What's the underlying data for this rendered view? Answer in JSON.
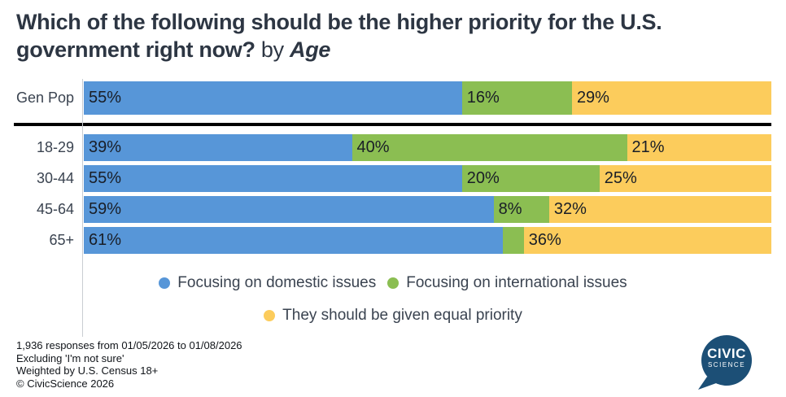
{
  "title": {
    "question": "Which of the following should be the higher priority for the U.S. government right now?",
    "by_connector": " by ",
    "dimension": "Age"
  },
  "chart_data": {
    "type": "bar",
    "stacked": true,
    "orientation": "horizontal",
    "unit": "%",
    "xlim": [
      0,
      100
    ],
    "categories": [
      "Gen Pop",
      "18-29",
      "30-44",
      "45-64",
      "65+"
    ],
    "series": [
      {
        "name": "Focusing on domestic issues",
        "color": "#5796D8",
        "values": [
          55,
          39,
          55,
          59,
          61
        ]
      },
      {
        "name": "Focusing on international issues",
        "color": "#8BBE52",
        "values": [
          16,
          40,
          20,
          8,
          3
        ]
      },
      {
        "name": "They should be given equal priority",
        "color": "#FCCC5C",
        "values": [
          29,
          21,
          25,
          32,
          36
        ]
      }
    ],
    "data_labels": [
      [
        "55%",
        "16%",
        "29%"
      ],
      [
        "39%",
        "40%",
        "21%"
      ],
      [
        "55%",
        "20%",
        "25%"
      ],
      [
        "59%",
        "8%",
        "32%"
      ],
      [
        "61%",
        "",
        "36%"
      ]
    ]
  },
  "legend": {
    "items": [
      {
        "label": "Focusing on domestic issues",
        "color": "#5796D8"
      },
      {
        "label": "Focusing on international issues",
        "color": "#8BBE52"
      },
      {
        "label": "They should be given equal priority",
        "color": "#FCCC5C"
      }
    ]
  },
  "footer": {
    "lines": [
      "1,936 responses from 01/05/2026 to 01/08/2026",
      "Excluding 'I'm not sure'",
      "Weighted by U.S. Census 18+",
      "© CivicScience 2026"
    ]
  },
  "logo": {
    "line1": "CIVIC",
    "line2": "SCIENCE"
  },
  "colors": {
    "domestic": "#5796D8",
    "international": "#8BBE52",
    "equal": "#FCCC5C",
    "title": "#2D3643",
    "logo_navy": "#1C4F76"
  }
}
